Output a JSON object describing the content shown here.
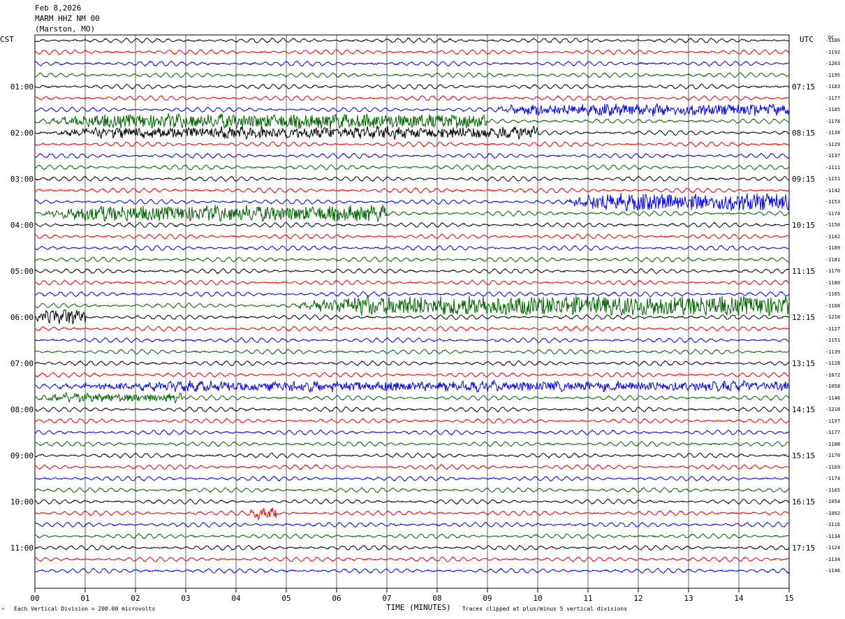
{
  "header": {
    "date": "Feb 8,2026",
    "station": "MARM HHZ NM 00",
    "location": "(Marston, MO)"
  },
  "left_tz": "CST",
  "right_tz": "UTC",
  "dc_header": "DC",
  "footer": {
    "scale_note": "Each Vertical Division =  200.00 microvolts",
    "xaxis_label": "TIME (MINUTES)",
    "clip_note": "Traces clipped at plus/minus 5 vertical divisions",
    "corner_mark": "^"
  },
  "colors": {
    "cycle": [
      "#000000",
      "#ff0000",
      "#0000ff",
      "#006400"
    ],
    "grid": "#000000"
  },
  "chart_data": {
    "type": "line",
    "title": "MARM HHZ NM 00",
    "xlabel": "TIME (MINUTES)",
    "xlim": [
      0,
      15
    ],
    "x_ticks": [
      "00",
      "01",
      "02",
      "03",
      "04",
      "05",
      "06",
      "07",
      "08",
      "09",
      "10",
      "11",
      "12",
      "13",
      "14",
      "15"
    ],
    "rows_per_hour": 4,
    "minutes_per_row": 15,
    "cst_labels": [
      {
        "row": 4,
        "text": "01:00"
      },
      {
        "row": 8,
        "text": "02:00"
      },
      {
        "row": 12,
        "text": "03:00"
      },
      {
        "row": 16,
        "text": "04:00"
      },
      {
        "row": 20,
        "text": "05:00"
      },
      {
        "row": 24,
        "text": "06:00"
      },
      {
        "row": 28,
        "text": "07:00"
      },
      {
        "row": 32,
        "text": "08:00"
      },
      {
        "row": 36,
        "text": "09:00"
      },
      {
        "row": 40,
        "text": "10:00"
      },
      {
        "row": 44,
        "text": "11:00"
      }
    ],
    "utc_labels": [
      {
        "row": 4,
        "text": "07:15"
      },
      {
        "row": 8,
        "text": "08:15"
      },
      {
        "row": 12,
        "text": "09:15"
      },
      {
        "row": 16,
        "text": "10:15"
      },
      {
        "row": 20,
        "text": "11:15"
      },
      {
        "row": 24,
        "text": "12:15"
      },
      {
        "row": 28,
        "text": "13:15"
      },
      {
        "row": 32,
        "text": "14:15"
      },
      {
        "row": 36,
        "text": "15:15"
      },
      {
        "row": 40,
        "text": "16:15"
      },
      {
        "row": 44,
        "text": "17:15"
      }
    ],
    "dc_offsets": [
      -1186,
      -1192,
      -1203,
      -1195,
      -1183,
      -1177,
      -1185,
      -1178,
      -1138,
      -1129,
      -1137,
      -1111,
      -1151,
      -1142,
      -1153,
      -1174,
      -1150,
      -1182,
      -1189,
      -1181,
      -1170,
      -1180,
      -1165,
      -1168,
      -1218,
      -1127,
      -1151,
      -1139,
      -1128,
      -1072,
      -1058,
      -1146,
      -1218,
      -1197,
      -1177,
      -1188,
      -1170,
      -1169,
      -1174,
      -1165,
      -1054,
      -1092,
      -1116,
      -1134,
      -1124,
      -1134,
      -1146
    ],
    "activity": [
      {
        "row": 6,
        "start": 9.0,
        "end": 15.0,
        "level": 2.2
      },
      {
        "row": 7,
        "start": 0.0,
        "end": 9.0,
        "level": 2.8
      },
      {
        "row": 8,
        "start": 0.0,
        "end": 10.0,
        "level": 2.2
      },
      {
        "row": 14,
        "start": 10.5,
        "end": 15.0,
        "level": 3.5
      },
      {
        "row": 15,
        "start": 0.0,
        "end": 7.0,
        "level": 3.0
      },
      {
        "row": 23,
        "start": 5.0,
        "end": 15.0,
        "level": 4.0
      },
      {
        "row": 24,
        "start": 0.0,
        "end": 1.0,
        "level": 3.0
      },
      {
        "row": 30,
        "start": 0.0,
        "end": 15.0,
        "level": 1.8
      },
      {
        "row": 31,
        "start": 0.0,
        "end": 3.0,
        "level": 1.6
      },
      {
        "row": 41,
        "start": 4.2,
        "end": 4.8,
        "level": 2.0
      }
    ]
  }
}
